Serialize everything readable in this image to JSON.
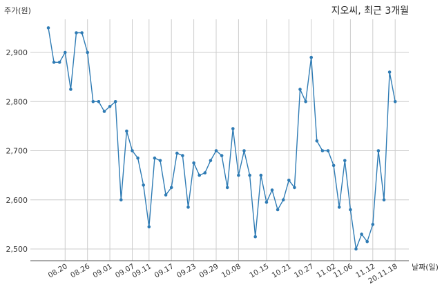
{
  "chart_data": {
    "type": "line",
    "title": "지오씨, 최근 3개월",
    "ylabel": "주가(원)",
    "xlabel": "날짜(일)",
    "ylim": [
      2480,
      2980
    ],
    "yticks": [
      2500,
      2600,
      2700,
      2800,
      2900
    ],
    "ytick_labels": [
      "2,500",
      "2,600",
      "2,700",
      "2,800",
      "2,900"
    ],
    "xtick_labels": [
      "08.20",
      "08.26",
      "09.01",
      "09.07",
      "09.11",
      "09.17",
      "09.23",
      "09.29",
      "10.08",
      "10.15",
      "10.21",
      "10.27",
      "11.02",
      "11.06",
      "11.12",
      "20.11.18"
    ],
    "xtick_index": [
      3,
      7,
      11,
      15,
      18,
      22,
      26,
      30,
      34,
      39,
      43,
      47,
      51,
      54,
      58,
      62
    ],
    "grid": true,
    "line_color": "#2e7bb4",
    "values": [
      2950,
      2880,
      2880,
      2900,
      2825,
      2940,
      2940,
      2900,
      2800,
      2800,
      2780,
      2790,
      2800,
      2600,
      2740,
      2700,
      2685,
      2630,
      2545,
      2685,
      2680,
      2610,
      2625,
      2695,
      2690,
      2585,
      2675,
      2650,
      2655,
      2680,
      2700,
      2690,
      2625,
      2745,
      2650,
      2700,
      2650,
      2525,
      2650,
      2595,
      2620,
      2580,
      2600,
      2640,
      2625,
      2825,
      2800,
      2890,
      2720,
      2700,
      2700,
      2670,
      2585,
      2680,
      2580,
      2500,
      2530,
      2515,
      2550,
      2700,
      2600,
      2860,
      2800
    ]
  }
}
